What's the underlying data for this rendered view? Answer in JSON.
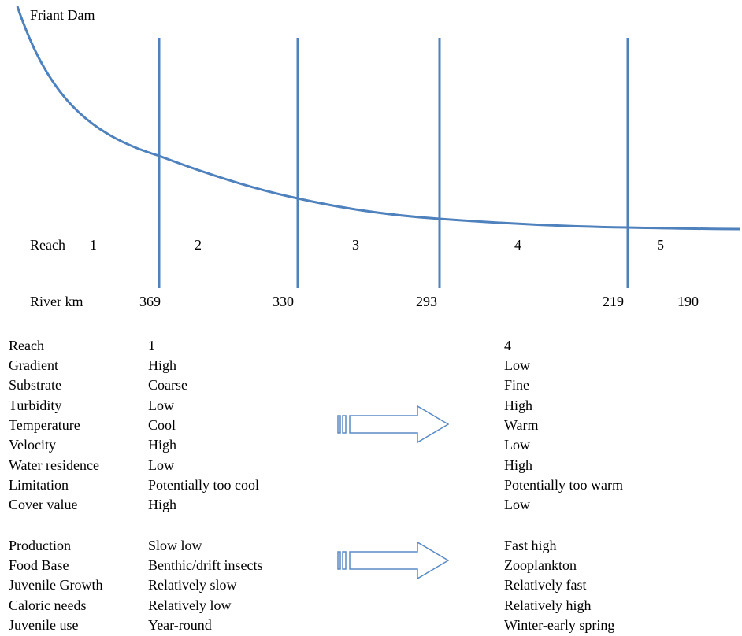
{
  "diagram": {
    "source_label": "Friant Dam",
    "reach_label": "Reach",
    "reach_numbers": [
      "1",
      "2",
      "3",
      "4",
      "5"
    ],
    "riverkm_label": "River km",
    "riverkm_values": [
      "369",
      "330",
      "293",
      "219",
      "190"
    ]
  },
  "comparison": {
    "group1": {
      "rows": [
        {
          "label": "Reach",
          "left": "1",
          "right": "4"
        },
        {
          "label": "Gradient",
          "left": "High",
          "right": "Low"
        },
        {
          "label": "Substrate",
          "left": "Coarse",
          "right": "Fine"
        },
        {
          "label": "Turbidity",
          "left": "Low",
          "right": "High"
        },
        {
          "label": "Temperature",
          "left": "Cool",
          "right": "Warm"
        },
        {
          "label": "Velocity",
          "left": "High",
          "right": "Low"
        },
        {
          "label": "Water residence",
          "left": "Low",
          "right": "High"
        },
        {
          "label": "Limitation",
          "left": "Potentially too cool",
          "right": "Potentially too warm"
        },
        {
          "label": "Cover value",
          "left": "High",
          "right": "Low"
        }
      ]
    },
    "group2": {
      "rows": [
        {
          "label": "Production",
          "left": "Slow low",
          "right": "Fast high"
        },
        {
          "label": "Food Base",
          "left": "Benthic/drift insects",
          "right": "Zooplankton"
        },
        {
          "label": "Juvenile Growth",
          "left": "Relatively slow",
          "right": "Relatively fast"
        },
        {
          "label": "Caloric needs",
          "left": "Relatively low",
          "right": "Relatively high"
        },
        {
          "label": "Juvenile use",
          "left": "Year-round",
          "right": "Winter-early spring"
        }
      ]
    }
  },
  "colors": {
    "line": "#4f81bd",
    "arrow_stroke": "#5b8ac5"
  }
}
